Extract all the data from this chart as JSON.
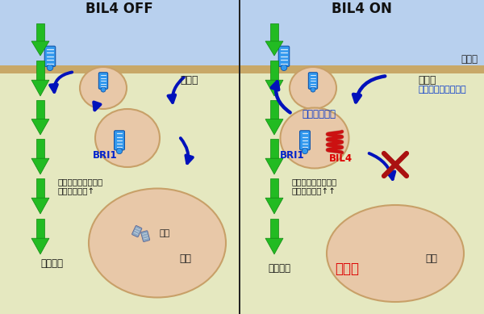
{
  "title_left": "BIL4 OFF",
  "title_right": "BIL4 ON",
  "bg_top_color": "#b8d0ee",
  "bg_cell_color": "#e5e8c0",
  "bg_vacuole_color": "#e8c8a8",
  "bg_membrane_color": "#c8a070",
  "divider_color": "#222222",
  "arrow_green": "#22bb22",
  "arrow_green_edge": "#118811",
  "arrow_blue_dark": "#0011bb",
  "text_black": "#111111",
  "text_blue": "#0022cc",
  "text_blue_endo": "#0033cc",
  "text_red": "#dd0000",
  "receptor_blue": "#3399ee",
  "receptor_stripe": "#99ccff",
  "receptor_dark": "#1155aa",
  "coil_red": "#cc1111",
  "label_saiboshitsu": "細胞質",
  "label_ekihou": "液胞",
  "label_saibomaku": "細胞膜",
  "label_bri1": "BRI1",
  "label_bil4": "BIL4",
  "label_endosome": "エンドソーム",
  "label_endocytosis": "エンドサイトーシス",
  "label_brassinosteroid_left": "ブラシノステロイド\nシグナル伝達↑",
  "label_brassinosteroid_right": "ブラシノステロイド\nシグナル伝達↑↑",
  "label_growth_left": "細胞伸長",
  "label_growth_right": "細胞伸長",
  "label_activation": "活性化",
  "label_bunkai": "分解"
}
